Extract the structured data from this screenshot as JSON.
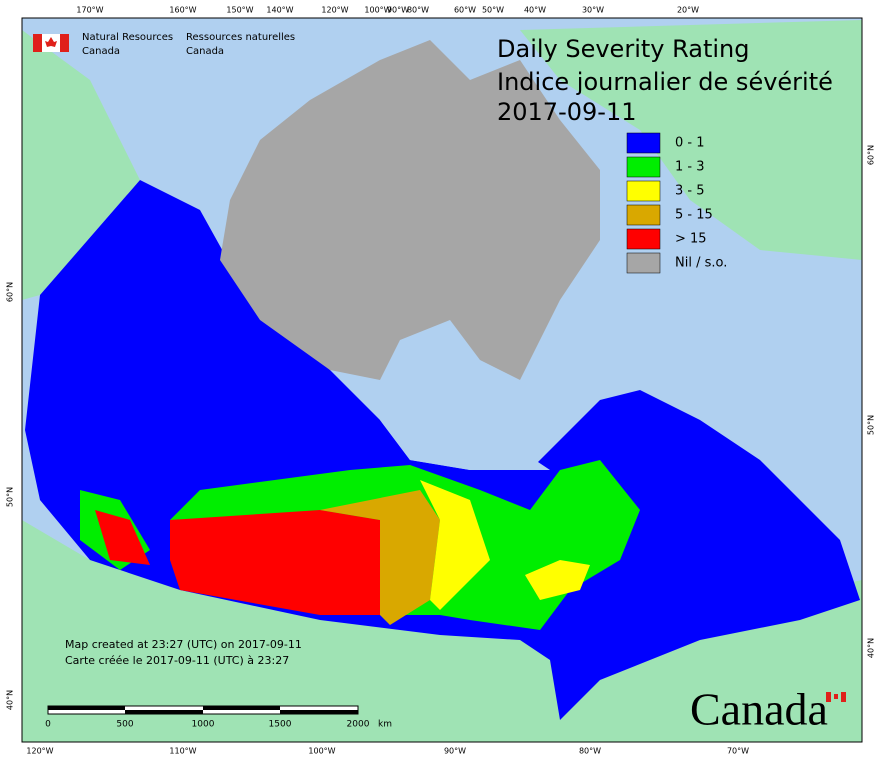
{
  "header": {
    "agency_en": [
      "Natural Resources",
      "Canada"
    ],
    "agency_fr": [
      "Ressources naturelles",
      "Canada"
    ]
  },
  "title": {
    "line1": "Daily Severity Rating",
    "line2": "Indice journalier de sévérité",
    "date": "2017-09-11"
  },
  "legend": {
    "items": [
      {
        "label": "0 - 1",
        "color": "#0000ff"
      },
      {
        "label": "1 - 3",
        "color": "#00ee00"
      },
      {
        "label": "3 - 5",
        "color": "#ffff00"
      },
      {
        "label": "5 - 15",
        "color": "#d9a800"
      },
      {
        "label": "> 15",
        "color": "#ff0000"
      },
      {
        "label": "Nil / s.o.",
        "color": "#a6a6a6"
      }
    ]
  },
  "graticule": {
    "top": [
      "170°W",
      "160°W",
      "150°W",
      "140°W",
      "120°W",
      "100°W",
      "90°W",
      "80°W",
      "60°W",
      "50°W",
      "40°W",
      "30°W",
      "20°W"
    ],
    "bottom": [
      "120°W",
      "110°W",
      "100°W",
      "90°W",
      "80°W",
      "70°W"
    ],
    "left": [
      "60°N",
      "50°N",
      "40°N"
    ],
    "right": [
      "60°N",
      "50°N",
      "40°N"
    ]
  },
  "scale_bar": {
    "labels": [
      "0",
      "500",
      "1000",
      "1500",
      "2000"
    ],
    "unit": "km"
  },
  "footer": {
    "created_en": "Map created at 23:27 (UTC) on 2017-09-11",
    "created_fr": "Carte créée le 2017-09-11 (UTC) à 23:27"
  },
  "wordmark": "Canada"
}
